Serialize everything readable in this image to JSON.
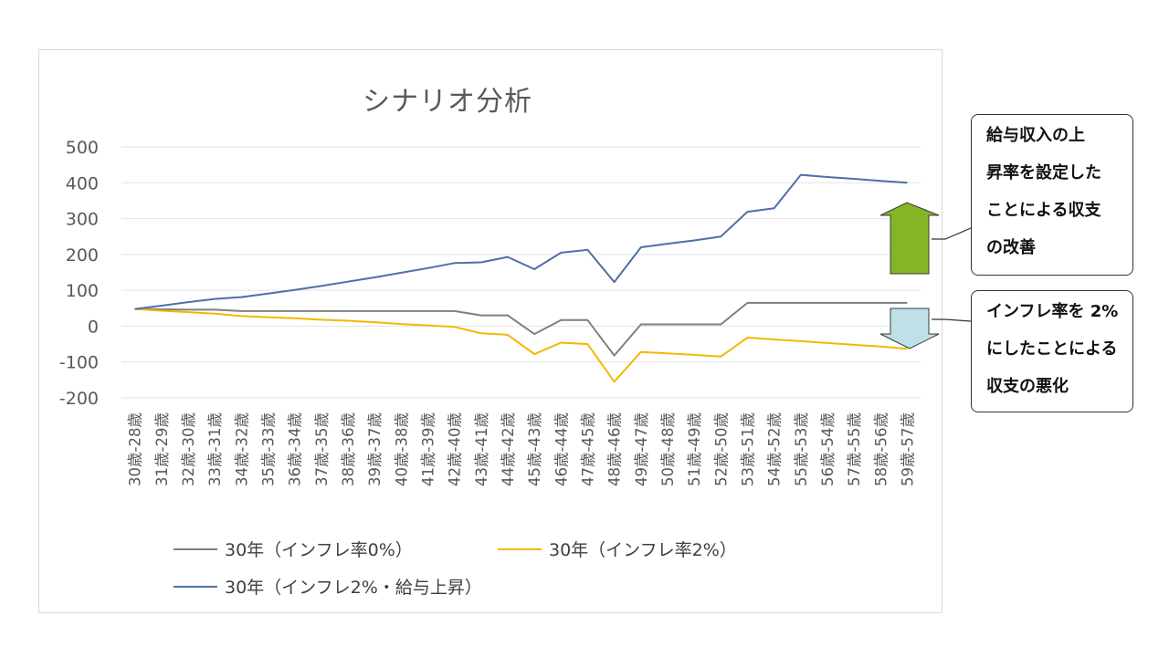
{
  "chart_data": {
    "type": "line",
    "title": "シナリオ分析",
    "xlabel": "",
    "ylabel": "",
    "ylim": [
      -200,
      500
    ],
    "yticks": [
      500,
      400,
      300,
      200,
      100,
      0,
      -100,
      -200
    ],
    "ytick_labels": [
      "500",
      "400",
      "300",
      "200",
      "100",
      "0",
      "-100",
      "-200"
    ],
    "grid": true,
    "legend_position": "bottom",
    "categories": [
      "30歳-28歳",
      "31歳-29歳",
      "32歳-30歳",
      "33歳-31歳",
      "34歳-32歳",
      "35歳-33歳",
      "36歳-34歳",
      "37歳-35歳",
      "38歳-36歳",
      "39歳-37歳",
      "40歳-38歳",
      "41歳-39歳",
      "42歳-40歳",
      "43歳-41歳",
      "44歳-42歳",
      "45歳-43歳",
      "46歳-44歳",
      "47歳-45歳",
      "48歳-46歳",
      "49歳-47歳",
      "50歳-48歳",
      "51歳-49歳",
      "52歳-50歳",
      "53歳-51歳",
      "54歳-52歳",
      "55歳-53歳",
      "56歳-54歳",
      "57歳-55歳",
      "58歳-56歳",
      "59歳-57歳"
    ],
    "series": [
      {
        "name": "30年（インフレ率0%）",
        "color": "#7f7f7f",
        "values": [
          48,
          47,
          46,
          46,
          42,
          42,
          42,
          42,
          42,
          42,
          42,
          42,
          42,
          30,
          30,
          -22,
          17,
          17,
          -82,
          5,
          5,
          5,
          5,
          65,
          65,
          65,
          65,
          65,
          65,
          65
        ]
      },
      {
        "name": "30年（インフレ率2%）",
        "color": "#f2b800",
        "values": [
          48,
          43,
          39,
          35,
          28,
          25,
          22,
          18,
          15,
          11,
          6,
          2,
          -2,
          -20,
          -24,
          -78,
          -46,
          -50,
          -155,
          -72,
          -76,
          -80,
          -85,
          -32,
          -37,
          -42,
          -47,
          -52,
          -57,
          -63
        ]
      },
      {
        "name": "30年（インフレ2%・給与上昇）",
        "color": "#4e6fa8",
        "values": [
          48,
          57,
          67,
          76,
          81,
          91,
          101,
          112,
          124,
          136,
          149,
          162,
          176,
          178,
          193,
          159,
          205,
          213,
          123,
          220,
          230,
          239,
          250,
          319,
          329,
          422,
          416,
          411,
          405,
          400
        ]
      }
    ]
  },
  "legend": [
    {
      "label": "30年（インフレ率0%）",
      "color": "#7f7f7f"
    },
    {
      "label": "30年（インフレ率2%）",
      "color": "#f2b800"
    },
    {
      "label": "30年（インフレ2%・給与上昇）",
      "color": "#4e6fa8"
    }
  ],
  "callouts": {
    "improve": {
      "lines": [
        "給与収入の上",
        "昇率を設定した",
        "ことによる収支",
        "の改善"
      ],
      "arrow_color": "#84b526"
    },
    "worsen": {
      "lines": [
        "インフレ率を 2%",
        "にしたことによる",
        "収支の悪化"
      ],
      "arrow_color": "#bfe0e6"
    }
  }
}
